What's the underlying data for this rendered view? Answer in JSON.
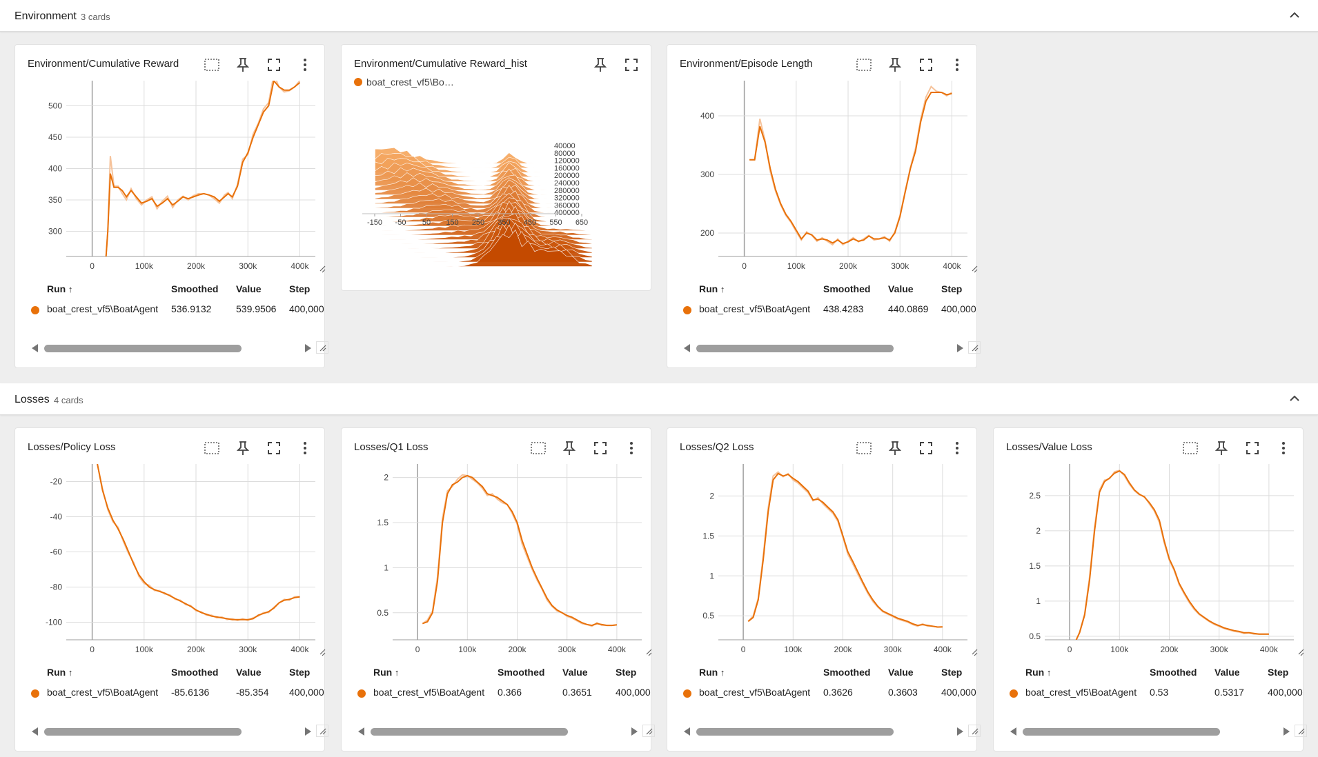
{
  "theme": {
    "accent": "#e8710a",
    "accent_light": "#f6c39b",
    "grid": "#dcdcdc",
    "axis": "#9e9e9e"
  },
  "sections": [
    {
      "title": "Environment",
      "count": "3 cards"
    },
    {
      "title": "Losses",
      "count": "4 cards"
    }
  ],
  "table_headers": {
    "run": "Run",
    "sort_icon": "arrow-up-icon",
    "smoothed": "Smoothed",
    "value": "Value",
    "step": "Step"
  },
  "cards": [
    {
      "title": "Environment/Cumulative Reward",
      "run": "boat_crest_vf5\\BoatAgent",
      "smoothed": "536.9132",
      "value": "539.9506",
      "step": "400,000",
      "chart_data": {
        "type": "line",
        "x_ticks": [
          "0",
          "100k",
          "200k",
          "300k",
          "400k"
        ],
        "y_ticks": [
          "300",
          "350",
          "400",
          "450",
          "500"
        ],
        "xlim": [
          -50000,
          430000
        ],
        "ylim": [
          260,
          540
        ],
        "x": [
          25000,
          30000,
          35000,
          42000,
          50000,
          58000,
          66000,
          75000,
          85000,
          95000,
          105000,
          115000,
          125000,
          135000,
          145000,
          155000,
          165000,
          175000,
          185000,
          195000,
          205000,
          215000,
          225000,
          235000,
          245000,
          255000,
          262000,
          270000,
          280000,
          290000,
          300000,
          310000,
          320000,
          330000,
          340000,
          350000,
          360000,
          370000,
          380000,
          390000,
          400000
        ],
        "y": [
          240,
          300,
          392,
          370,
          370,
          365,
          355,
          365,
          355,
          345,
          348,
          352,
          340,
          345,
          352,
          342,
          348,
          355,
          352,
          355,
          358,
          360,
          358,
          355,
          348,
          355,
          360,
          355,
          372,
          410,
          425,
          450,
          470,
          490,
          500,
          540,
          530,
          525,
          525,
          530,
          537
        ],
        "raw_y": [
          240,
          300,
          420,
          372,
          372,
          360,
          350,
          368,
          352,
          342,
          350,
          355,
          336,
          348,
          356,
          338,
          350,
          356,
          350,
          357,
          360,
          360,
          358,
          352,
          345,
          358,
          362,
          352,
          375,
          415,
          422,
          455,
          472,
          495,
          505,
          550,
          530,
          522,
          524,
          530,
          540
        ]
      }
    },
    {
      "title": "Environment/Cumulative Reward_hist",
      "run": "boat_crest_vf5\\Bo…",
      "chart_data": {
        "type": "area",
        "x_ticks": [
          "-150",
          "-50",
          "50",
          "150",
          "250",
          "350",
          "450",
          "550",
          "650"
        ],
        "step_labels": [
          "40000",
          "80000",
          "120000",
          "160000",
          "200000",
          "240000",
          "280000",
          "320000",
          "360000",
          "400000"
        ]
      }
    },
    {
      "title": "Environment/Episode Length",
      "run": "boat_crest_vf5\\BoatAgent",
      "smoothed": "438.4283",
      "value": "440.0869",
      "step": "400,000",
      "chart_data": {
        "type": "line",
        "x_ticks": [
          "0",
          "100k",
          "200k",
          "300k",
          "400k"
        ],
        "y_ticks": [
          "200",
          "300",
          "400"
        ],
        "xlim": [
          -50000,
          430000
        ],
        "ylim": [
          160,
          460
        ],
        "x": [
          10000,
          20000,
          30000,
          40000,
          50000,
          60000,
          70000,
          80000,
          90000,
          100000,
          110000,
          120000,
          130000,
          140000,
          150000,
          160000,
          170000,
          180000,
          190000,
          200000,
          210000,
          220000,
          230000,
          240000,
          250000,
          260000,
          270000,
          280000,
          290000,
          300000,
          310000,
          320000,
          330000,
          340000,
          350000,
          360000,
          370000,
          380000,
          390000,
          400000
        ],
        "y": [
          325,
          325,
          382,
          355,
          310,
          275,
          250,
          232,
          220,
          205,
          190,
          200,
          197,
          188,
          190,
          188,
          183,
          188,
          182,
          185,
          190,
          186,
          188,
          195,
          190,
          190,
          192,
          188,
          200,
          228,
          270,
          310,
          340,
          390,
          425,
          440,
          440,
          440,
          436,
          438
        ],
        "raw_y": [
          325,
          325,
          395,
          358,
          305,
          272,
          248,
          230,
          218,
          202,
          188,
          202,
          196,
          186,
          192,
          186,
          180,
          190,
          180,
          186,
          192,
          185,
          190,
          196,
          188,
          190,
          194,
          186,
          202,
          230,
          272,
          312,
          345,
          395,
          432,
          450,
          442,
          440,
          434,
          440
        ]
      }
    },
    {
      "title": "Losses/Policy Loss",
      "run": "boat_crest_vf5\\BoatAgent",
      "smoothed": "-85.6136",
      "value": "-85.354",
      "step": "400,000",
      "chart_data": {
        "type": "line",
        "x_ticks": [
          "0",
          "100k",
          "200k",
          "300k",
          "400k"
        ],
        "y_ticks": [
          "-20",
          "-40",
          "-60",
          "-80",
          "-100"
        ],
        "xlim": [
          -50000,
          430000
        ],
        "ylim": [
          -110,
          -10
        ],
        "x": [
          10000,
          20000,
          30000,
          40000,
          50000,
          60000,
          70000,
          80000,
          90000,
          100000,
          110000,
          120000,
          130000,
          140000,
          150000,
          160000,
          170000,
          180000,
          190000,
          200000,
          210000,
          220000,
          230000,
          240000,
          250000,
          260000,
          270000,
          280000,
          290000,
          300000,
          310000,
          320000,
          330000,
          340000,
          350000,
          360000,
          370000,
          380000,
          390000,
          400000
        ],
        "y": [
          -10,
          -25,
          -35,
          -42,
          -47,
          -53,
          -60,
          -67,
          -73,
          -77,
          -80,
          -81.5,
          -82.5,
          -83.5,
          -85,
          -86.5,
          -88,
          -89.5,
          -91,
          -93,
          -94.5,
          -95.5,
          -96.5,
          -97,
          -97.5,
          -98,
          -98.5,
          -98.5,
          -98.5,
          -98.5,
          -98,
          -96,
          -95,
          -94,
          -92,
          -89,
          -87.5,
          -87,
          -86,
          -85.6
        ],
        "raw_y": [
          -10,
          -24,
          -36,
          -43,
          -46,
          -54,
          -61,
          -66,
          -74,
          -78,
          -79,
          -82,
          -82,
          -84,
          -84.5,
          -87,
          -87.5,
          -90,
          -90.5,
          -93.5,
          -94,
          -96,
          -96,
          -97.5,
          -97,
          -98.5,
          -98,
          -99,
          -98,
          -99,
          -97.5,
          -96.5,
          -94.5,
          -94.5,
          -91.5,
          -89,
          -87,
          -87.5,
          -85.5,
          -85.4
        ]
      }
    },
    {
      "title": "Losses/Q1 Loss",
      "run": "boat_crest_vf5\\BoatAgent",
      "smoothed": "0.366",
      "value": "0.3651",
      "step": "400,000",
      "chart_data": {
        "type": "line",
        "x_ticks": [
          "0",
          "100k",
          "200k",
          "300k",
          "400k"
        ],
        "y_ticks": [
          "0.5",
          "1",
          "1.5",
          "2"
        ],
        "xlim": [
          -50000,
          450000
        ],
        "ylim": [
          0.2,
          2.15
        ],
        "x": [
          10000,
          20000,
          30000,
          40000,
          50000,
          60000,
          70000,
          80000,
          90000,
          100000,
          110000,
          120000,
          130000,
          140000,
          150000,
          160000,
          170000,
          180000,
          190000,
          200000,
          210000,
          220000,
          230000,
          240000,
          250000,
          260000,
          270000,
          280000,
          290000,
          300000,
          310000,
          320000,
          330000,
          340000,
          350000,
          360000,
          370000,
          380000,
          390000,
          400000
        ],
        "y": [
          0.38,
          0.4,
          0.5,
          0.85,
          1.5,
          1.82,
          1.92,
          1.95,
          2.0,
          2.02,
          2.0,
          1.95,
          1.9,
          1.82,
          1.8,
          1.78,
          1.74,
          1.7,
          1.62,
          1.5,
          1.3,
          1.15,
          1.0,
          0.88,
          0.77,
          0.66,
          0.58,
          0.53,
          0.5,
          0.47,
          0.45,
          0.42,
          0.39,
          0.37,
          0.36,
          0.38,
          0.37,
          0.36,
          0.36,
          0.366
        ],
        "raw_y": [
          0.38,
          0.42,
          0.52,
          0.9,
          1.55,
          1.85,
          1.9,
          1.98,
          2.03,
          2.02,
          1.98,
          1.94,
          1.88,
          1.8,
          1.82,
          1.76,
          1.72,
          1.7,
          1.6,
          1.48,
          1.26,
          1.12,
          0.98,
          0.86,
          0.76,
          0.64,
          0.57,
          0.52,
          0.5,
          0.46,
          0.44,
          0.41,
          0.38,
          0.37,
          0.35,
          0.39,
          0.36,
          0.36,
          0.36,
          0.3651
        ]
      }
    },
    {
      "title": "Losses/Q2 Loss",
      "run": "boat_crest_vf5\\BoatAgent",
      "smoothed": "0.3626",
      "value": "0.3603",
      "step": "400,000",
      "chart_data": {
        "type": "line",
        "x_ticks": [
          "0",
          "100k",
          "200k",
          "300k",
          "400k"
        ],
        "y_ticks": [
          "0.5",
          "1",
          "1.5",
          "2"
        ],
        "xlim": [
          -50000,
          450000
        ],
        "ylim": [
          0.2,
          2.4
        ],
        "x": [
          10000,
          20000,
          30000,
          40000,
          50000,
          60000,
          70000,
          80000,
          90000,
          100000,
          110000,
          120000,
          130000,
          140000,
          150000,
          160000,
          170000,
          180000,
          190000,
          200000,
          210000,
          220000,
          230000,
          240000,
          250000,
          260000,
          270000,
          280000,
          290000,
          300000,
          310000,
          320000,
          330000,
          340000,
          350000,
          360000,
          370000,
          380000,
          390000,
          400000
        ],
        "y": [
          0.43,
          0.48,
          0.7,
          1.2,
          1.8,
          2.2,
          2.28,
          2.25,
          2.27,
          2.22,
          2.18,
          2.12,
          2.06,
          1.95,
          1.96,
          1.92,
          1.86,
          1.8,
          1.7,
          1.5,
          1.3,
          1.18,
          1.05,
          0.92,
          0.8,
          0.7,
          0.62,
          0.56,
          0.53,
          0.5,
          0.47,
          0.45,
          0.43,
          0.4,
          0.38,
          0.39,
          0.38,
          0.37,
          0.36,
          0.3626
        ],
        "raw_y": [
          0.43,
          0.5,
          0.72,
          1.25,
          1.85,
          2.25,
          2.3,
          2.24,
          2.28,
          2.2,
          2.16,
          2.1,
          2.04,
          1.94,
          1.98,
          1.9,
          1.84,
          1.78,
          1.68,
          1.48,
          1.27,
          1.15,
          1.02,
          0.9,
          0.78,
          0.68,
          0.61,
          0.55,
          0.52,
          0.49,
          0.46,
          0.44,
          0.42,
          0.39,
          0.37,
          0.4,
          0.37,
          0.37,
          0.36,
          0.3603
        ]
      }
    },
    {
      "title": "Losses/Value Loss",
      "run": "boat_crest_vf5\\BoatAgent",
      "smoothed": "0.53",
      "value": "0.5317",
      "step": "400,000",
      "chart_data": {
        "type": "line",
        "x_ticks": [
          "0",
          "100k",
          "200k",
          "300k",
          "400k"
        ],
        "y_ticks": [
          "0.5",
          "1",
          "1.5",
          "2",
          "2.5"
        ],
        "xlim": [
          -50000,
          450000
        ],
        "ylim": [
          0.45,
          2.95
        ],
        "x": [
          10000,
          20000,
          30000,
          40000,
          50000,
          60000,
          70000,
          80000,
          90000,
          100000,
          110000,
          120000,
          130000,
          140000,
          150000,
          160000,
          170000,
          180000,
          190000,
          200000,
          210000,
          220000,
          230000,
          240000,
          250000,
          260000,
          270000,
          280000,
          290000,
          300000,
          310000,
          320000,
          330000,
          340000,
          350000,
          360000,
          370000,
          380000,
          390000,
          400000
        ],
        "y": [
          0.4,
          0.55,
          0.8,
          1.3,
          2.0,
          2.55,
          2.7,
          2.75,
          2.82,
          2.85,
          2.8,
          2.68,
          2.58,
          2.52,
          2.48,
          2.4,
          2.3,
          2.15,
          1.85,
          1.6,
          1.45,
          1.25,
          1.12,
          1.0,
          0.9,
          0.82,
          0.77,
          0.72,
          0.68,
          0.65,
          0.62,
          0.6,
          0.58,
          0.57,
          0.55,
          0.55,
          0.54,
          0.53,
          0.53,
          0.53
        ],
        "raw_y": [
          0.4,
          0.56,
          0.82,
          1.35,
          2.05,
          2.58,
          2.72,
          2.74,
          2.84,
          2.86,
          2.78,
          2.66,
          2.57,
          2.51,
          2.49,
          2.38,
          2.28,
          2.12,
          1.82,
          1.58,
          1.43,
          1.23,
          1.1,
          0.98,
          0.88,
          0.81,
          0.76,
          0.71,
          0.67,
          0.64,
          0.61,
          0.59,
          0.57,
          0.56,
          0.54,
          0.55,
          0.53,
          0.53,
          0.53,
          0.5317
        ]
      }
    }
  ]
}
